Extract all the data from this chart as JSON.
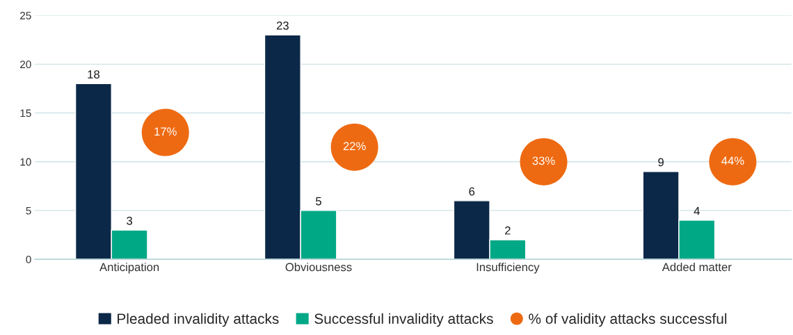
{
  "chart_data": {
    "type": "bar",
    "categories": [
      "Anticipation",
      "Obviousness",
      "Insufficiency",
      "Added matter"
    ],
    "series": [
      {
        "name": "Pleaded invalidity attacks",
        "color": "#0c2848",
        "values": [
          18,
          23,
          6,
          9
        ],
        "data_labels": true
      },
      {
        "name": "Successful invalidity attacks",
        "color": "#00a886",
        "values": [
          3,
          5,
          2,
          4
        ],
        "data_labels": true
      },
      {
        "name": "% of validity attacks successful",
        "type": "scatter",
        "color": "#ee6a12",
        "values": [
          13,
          11.5,
          10,
          10
        ]
      }
    ],
    "annotations": [
      "17%",
      "22%",
      "33%",
      "44%"
    ],
    "ylim": [
      0,
      25
    ],
    "yticks": [
      0,
      5,
      10,
      15,
      20,
      25
    ],
    "grid": "y",
    "legend": "bottom"
  }
}
